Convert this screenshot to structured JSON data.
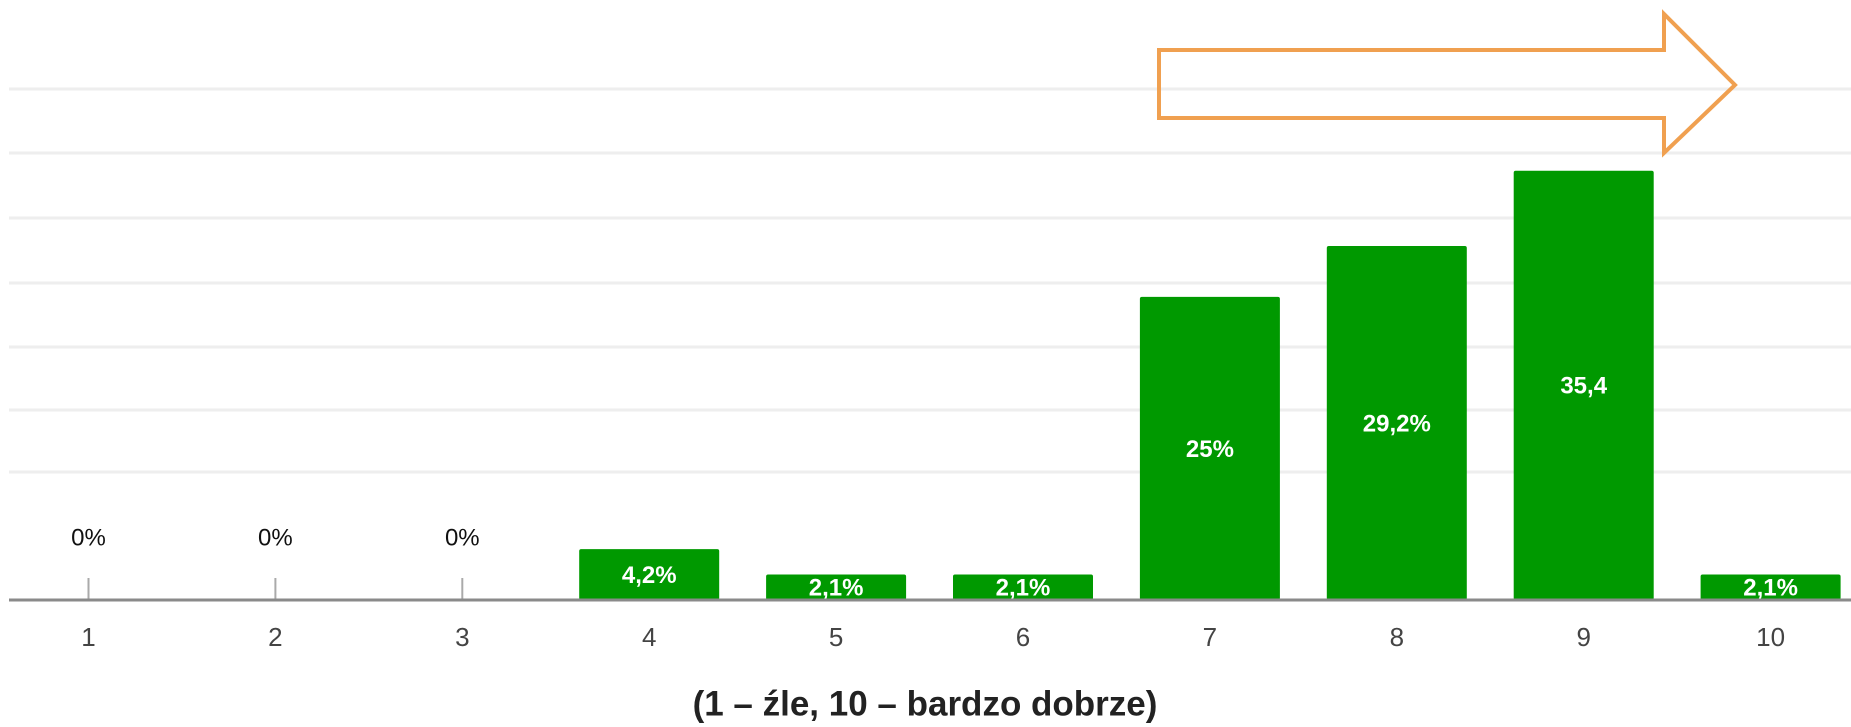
{
  "chart_data": {
    "type": "bar",
    "categories": [
      "1",
      "2",
      "3",
      "4",
      "5",
      "6",
      "7",
      "8",
      "9",
      "10"
    ],
    "values": [
      0,
      0,
      0,
      4.2,
      2.1,
      2.1,
      25,
      29.2,
      35.4,
      2.1
    ],
    "value_labels": [
      "0%",
      "0%",
      "0%",
      "4,2%",
      "2,1%",
      "2,1%",
      "25%",
      "29,2%",
      "35,4",
      "2,1%"
    ],
    "color": "#009900",
    "ylim": [
      0,
      40
    ],
    "x_label": "(1 – źle, 10 – bardzo dobrze)"
  }
}
